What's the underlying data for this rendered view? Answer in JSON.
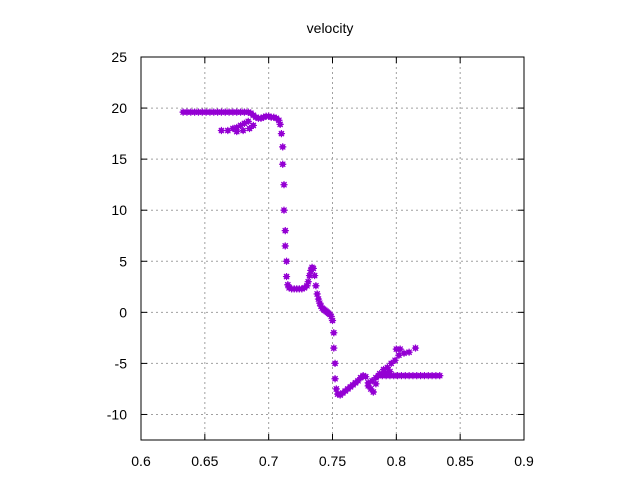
{
  "chart_data": {
    "type": "scatter",
    "title": "velocity",
    "xlabel": "",
    "ylabel": "",
    "xlim": [
      0.6,
      0.9
    ],
    "ylim": [
      -12.5,
      25
    ],
    "xticks": [
      0.6,
      0.65,
      0.7,
      0.75,
      0.8,
      0.85,
      0.9
    ],
    "xtick_labels": [
      "0.6",
      "0.65",
      "0.7",
      "0.75",
      "0.8",
      "0.85",
      "0.9"
    ],
    "yticks": [
      -10,
      -5,
      0,
      5,
      10,
      15,
      20,
      25
    ],
    "ytick_labels": [
      "-10",
      "-5",
      "0",
      "5",
      "10",
      "15",
      "20",
      "25"
    ],
    "grid": true,
    "marker_color": "#9400d3",
    "series": [
      {
        "points": [
          [
            0.633,
            19.6
          ],
          [
            0.636,
            19.6
          ],
          [
            0.639,
            19.6
          ],
          [
            0.642,
            19.6
          ],
          [
            0.645,
            19.6
          ],
          [
            0.648,
            19.6
          ],
          [
            0.651,
            19.6
          ],
          [
            0.654,
            19.6
          ],
          [
            0.657,
            19.6
          ],
          [
            0.66,
            19.6
          ],
          [
            0.663,
            19.6
          ],
          [
            0.666,
            19.6
          ],
          [
            0.669,
            19.6
          ],
          [
            0.672,
            19.6
          ],
          [
            0.675,
            19.6
          ],
          [
            0.678,
            19.6
          ],
          [
            0.681,
            19.6
          ],
          [
            0.684,
            19.6
          ],
          [
            0.686,
            19.5
          ],
          [
            0.688,
            19.3
          ],
          [
            0.69,
            19.1
          ],
          [
            0.692,
            19.0
          ],
          [
            0.694,
            19.0
          ],
          [
            0.696,
            19.1
          ],
          [
            0.698,
            19.2
          ],
          [
            0.7,
            19.2
          ],
          [
            0.702,
            19.1
          ],
          [
            0.704,
            19.1
          ],
          [
            0.706,
            19.0
          ],
          [
            0.708,
            18.8
          ],
          [
            0.709,
            18.4
          ],
          [
            0.71,
            17.5
          ],
          [
            0.663,
            17.8
          ],
          [
            0.668,
            17.8
          ],
          [
            0.672,
            18.0
          ],
          [
            0.675,
            18.1
          ],
          [
            0.678,
            18.3
          ],
          [
            0.681,
            18.5
          ],
          [
            0.684,
            18.7
          ],
          [
            0.675,
            17.7
          ],
          [
            0.68,
            17.8
          ],
          [
            0.685,
            18.0
          ],
          [
            0.688,
            18.3
          ],
          [
            0.711,
            16.2
          ],
          [
            0.711,
            14.5
          ],
          [
            0.712,
            12.5
          ],
          [
            0.712,
            10.0
          ],
          [
            0.713,
            8.0
          ],
          [
            0.713,
            6.5
          ],
          [
            0.714,
            5.0
          ],
          [
            0.714,
            3.5
          ],
          [
            0.715,
            2.7
          ],
          [
            0.716,
            2.4
          ],
          [
            0.718,
            2.3
          ],
          [
            0.72,
            2.3
          ],
          [
            0.722,
            2.3
          ],
          [
            0.724,
            2.3
          ],
          [
            0.726,
            2.3
          ],
          [
            0.728,
            2.4
          ],
          [
            0.73,
            2.6
          ],
          [
            0.731,
            3.0
          ],
          [
            0.732,
            3.6
          ],
          [
            0.733,
            4.1
          ],
          [
            0.734,
            4.4
          ],
          [
            0.735,
            4.3
          ],
          [
            0.736,
            3.6
          ],
          [
            0.737,
            2.6
          ],
          [
            0.738,
            1.8
          ],
          [
            0.739,
            1.3
          ],
          [
            0.74,
            0.9
          ],
          [
            0.741,
            0.6
          ],
          [
            0.742,
            0.4
          ],
          [
            0.743,
            0.3
          ],
          [
            0.744,
            0.2
          ],
          [
            0.745,
            0.1
          ],
          [
            0.746,
            0.0
          ],
          [
            0.747,
            -0.1
          ],
          [
            0.748,
            -0.2
          ],
          [
            0.749,
            -0.4
          ],
          [
            0.75,
            -0.8
          ],
          [
            0.751,
            -2.0
          ],
          [
            0.751,
            -3.5
          ],
          [
            0.752,
            -5.0
          ],
          [
            0.752,
            -6.5
          ],
          [
            0.753,
            -7.5
          ],
          [
            0.754,
            -8.0
          ],
          [
            0.756,
            -8.1
          ],
          [
            0.758,
            -7.9
          ],
          [
            0.76,
            -7.7
          ],
          [
            0.762,
            -7.5
          ],
          [
            0.764,
            -7.3
          ],
          [
            0.766,
            -7.1
          ],
          [
            0.768,
            -6.9
          ],
          [
            0.77,
            -6.7
          ],
          [
            0.772,
            -6.4
          ],
          [
            0.774,
            -6.2
          ],
          [
            0.776,
            -6.3
          ],
          [
            0.778,
            -6.9
          ],
          [
            0.78,
            -7.5
          ],
          [
            0.782,
            -7.8
          ],
          [
            0.784,
            -7.0
          ],
          [
            0.786,
            -6.2
          ],
          [
            0.789,
            -6.2
          ],
          [
            0.792,
            -6.2
          ],
          [
            0.795,
            -6.2
          ],
          [
            0.798,
            -6.2
          ],
          [
            0.801,
            -6.2
          ],
          [
            0.804,
            -6.2
          ],
          [
            0.807,
            -6.2
          ],
          [
            0.81,
            -6.2
          ],
          [
            0.813,
            -6.2
          ],
          [
            0.816,
            -6.2
          ],
          [
            0.819,
            -6.2
          ],
          [
            0.822,
            -6.2
          ],
          [
            0.825,
            -6.2
          ],
          [
            0.828,
            -6.2
          ],
          [
            0.831,
            -6.2
          ],
          [
            0.834,
            -6.2
          ],
          [
            0.778,
            -7.2
          ],
          [
            0.781,
            -6.7
          ],
          [
            0.784,
            -6.4
          ],
          [
            0.787,
            -6.0
          ],
          [
            0.79,
            -5.6
          ],
          [
            0.793,
            -5.4
          ],
          [
            0.796,
            -5.0
          ],
          [
            0.799,
            -4.7
          ],
          [
            0.802,
            -4.2
          ],
          [
            0.806,
            -4.0
          ],
          [
            0.81,
            -3.9
          ],
          [
            0.815,
            -3.5
          ],
          [
            0.8,
            -3.6
          ],
          [
            0.803,
            -3.6
          ],
          [
            0.795,
            -5.8
          ],
          [
            0.791,
            -5.9
          ]
        ]
      }
    ]
  }
}
